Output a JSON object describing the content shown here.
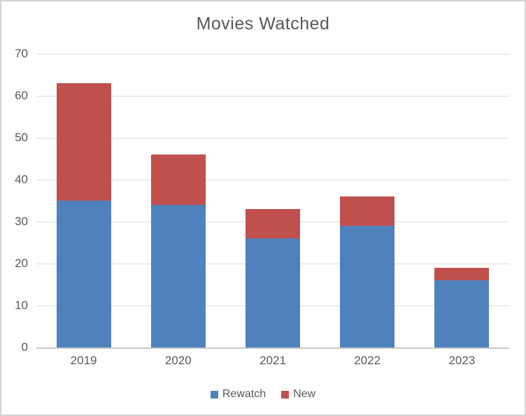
{
  "chart_data": {
    "type": "bar",
    "stacked": true,
    "title": "Movies Watched",
    "categories": [
      "2019",
      "2020",
      "2021",
      "2022",
      "2023"
    ],
    "series": [
      {
        "name": "Rewatch",
        "color": "#4f81bd",
        "values": [
          35,
          34,
          26,
          29,
          16
        ]
      },
      {
        "name": "New",
        "color": "#c0504d",
        "values": [
          28,
          12,
          7,
          7,
          3
        ]
      }
    ],
    "xlabel": "",
    "ylabel": "",
    "ylim": [
      0,
      70
    ],
    "yticks": [
      0,
      10,
      20,
      30,
      40,
      50,
      60,
      70
    ],
    "grid": true,
    "legend_position": "bottom",
    "colors": {
      "text": "#595959",
      "gridline": "#dcdcdc",
      "axis_line": "#c8c8c8",
      "frame_border": "#d3d3d3",
      "background": "#ffffff"
    }
  }
}
